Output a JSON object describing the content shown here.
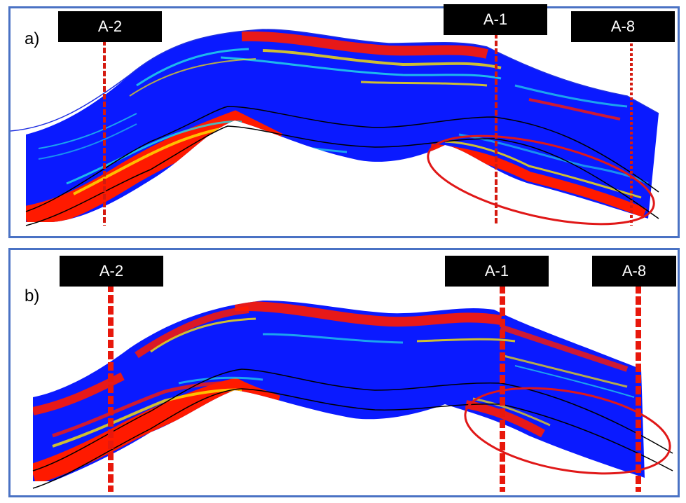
{
  "panels": [
    {
      "id": "a",
      "label": "a)",
      "wells": [
        {
          "name": "A-2"
        },
        {
          "name": "A-1"
        },
        {
          "name": "A-8"
        }
      ]
    },
    {
      "id": "b",
      "label": "b)",
      "wells": [
        {
          "name": "A-2"
        },
        {
          "name": "A-1"
        },
        {
          "name": "A-8"
        }
      ]
    }
  ],
  "colors": {
    "frame": "#4a72c4",
    "fill_blue": "#0a1aff",
    "high_red": "#ff1a00",
    "mid_yellow": "#ffe800",
    "mid_cyan": "#22e0e8",
    "well_line": "#d41a10",
    "highlight_ellipse": "#e01818",
    "horizon_line": "#000000"
  }
}
